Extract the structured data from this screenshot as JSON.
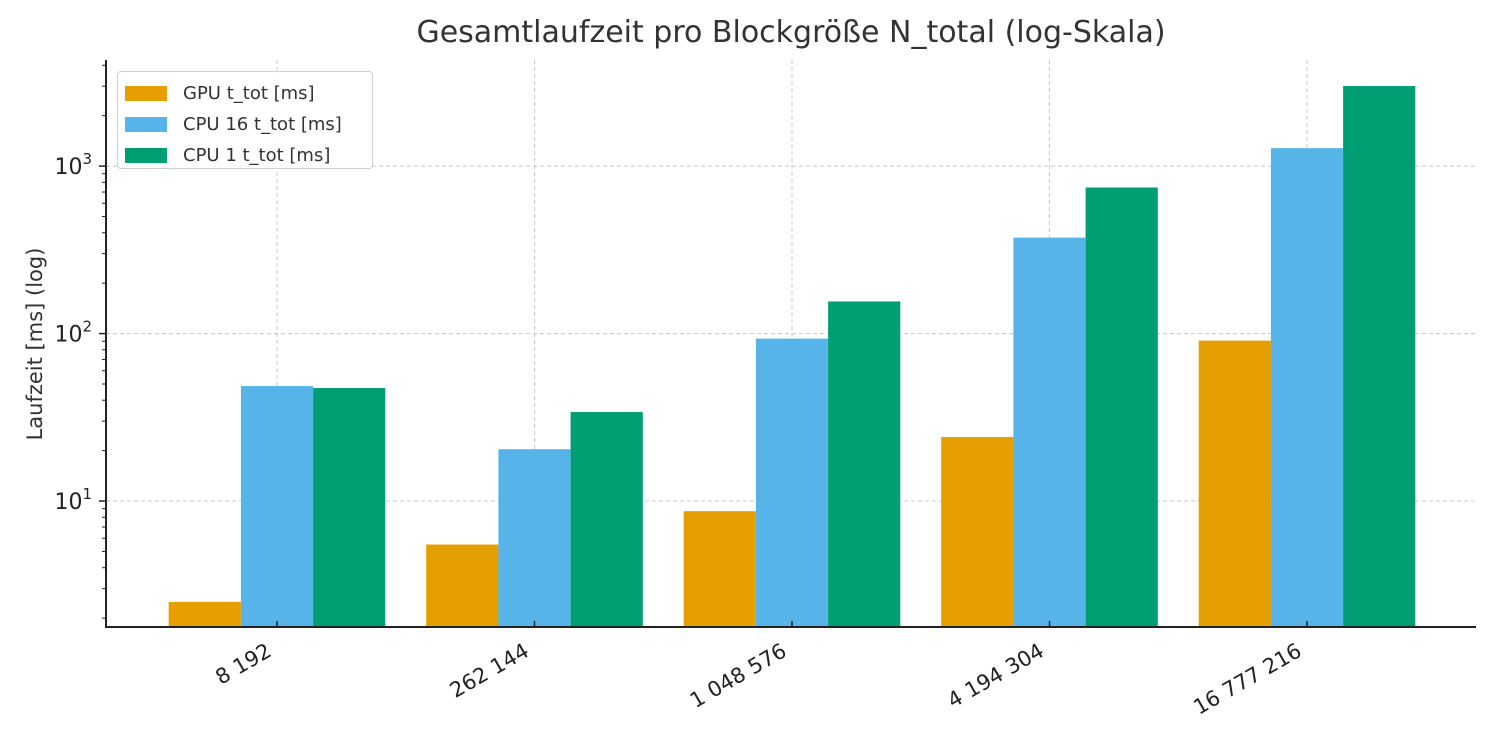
{
  "chart_data": {
    "type": "bar",
    "title": "Gesamtlaufzeit pro Blockgröße N_total (log-Skala)",
    "xlabel": "",
    "ylabel": "Laufzeit [ms] (log)",
    "yscale": "log",
    "ylim": [
      1.77,
      4300
    ],
    "grid": true,
    "legend_position": "upper left",
    "categories": [
      "8 192",
      "262 144",
      "1 048 576",
      "4 194 304",
      "16 777 216"
    ],
    "series": [
      {
        "name": "GPU t_tot [ms]",
        "color": "#E69F00",
        "values": [
          2.5,
          5.5,
          8.7,
          24.1,
          90.8
        ]
      },
      {
        "name": "CPU 16 t_tot [ms]",
        "color": "#56B4E9",
        "values": [
          48.6,
          20.4,
          93.3,
          374,
          1280
        ]
      },
      {
        "name": "CPU 1 t_tot [ms]",
        "color": "#009E73",
        "values": [
          47.3,
          34.0,
          155.5,
          745,
          3006
        ]
      }
    ],
    "y_ticks": [
      {
        "value": 10,
        "label_base": "10",
        "label_exp": "1"
      },
      {
        "value": 100,
        "label_base": "10",
        "label_exp": "2"
      },
      {
        "value": 1000,
        "label_base": "10",
        "label_exp": "3"
      }
    ],
    "x_tick_rotation": -30
  }
}
